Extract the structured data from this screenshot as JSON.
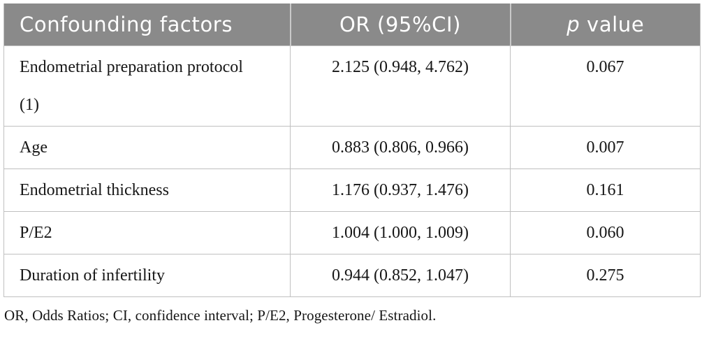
{
  "table": {
    "header": {
      "col1": "Confounding factors",
      "col2": "OR (95%CI)",
      "col3_p": "p",
      "col3_rest": " value"
    },
    "rows": [
      {
        "factor": "Endometrial preparation protocol (1)",
        "or_ci": "2.125 (0.948, 4.762)",
        "p": "0.067"
      },
      {
        "factor": "Age",
        "or_ci": "0.883 (0.806, 0.966)",
        "p": "0.007"
      },
      {
        "factor": "Endometrial thickness",
        "or_ci": "1.176 (0.937, 1.476)",
        "p": "0.161"
      },
      {
        "factor": "P/E2",
        "or_ci": "1.004 (1.000, 1.009)",
        "p": "0.060"
      },
      {
        "factor": "Duration of infertility",
        "or_ci": "0.944 (0.852, 1.047)",
        "p": "0.275"
      }
    ],
    "footnote": "OR, Odds Ratios; CI, confidence interval; P/E2, Progesterone/ Estradiol.",
    "colors": {
      "header_bg": "#8a8a8a",
      "header_text": "#ffffff",
      "body_text": "#161616",
      "border": "#c0c0c0"
    }
  }
}
